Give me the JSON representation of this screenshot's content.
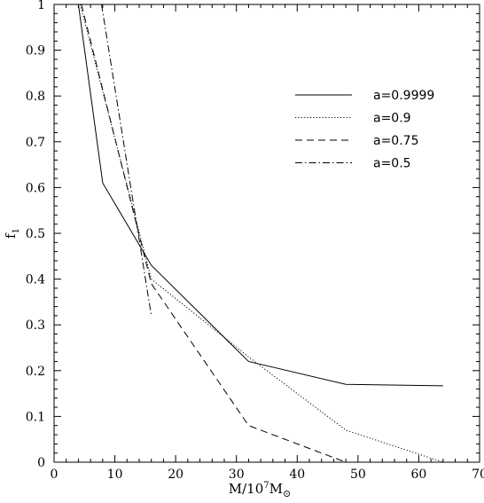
{
  "chart_data": {
    "type": "line",
    "title": "",
    "xlabel": "M/10",
    "xlabel_superscript": "7",
    "xlabel_unit": "M",
    "xlabel_unit_subscript": "⊙",
    "ylabel": "f",
    "ylabel_subscript": "1",
    "xlim": [
      0,
      70
    ],
    "ylim": [
      0,
      1
    ],
    "xticks": [
      0,
      10,
      20,
      30,
      40,
      50,
      60,
      70
    ],
    "yticks": [
      0,
      0.1,
      0.2,
      0.3,
      0.4,
      0.5,
      0.6,
      0.7,
      0.8,
      0.9,
      1
    ],
    "xtick_labels": [
      "0",
      "10",
      "20",
      "30",
      "40",
      "50",
      "60",
      "70"
    ],
    "ytick_labels": [
      "0",
      "0.1",
      "0.2",
      "0.3",
      "0.4",
      "0.5",
      "0.6",
      "0.7",
      "0.8",
      "0.9",
      "1"
    ],
    "grid": false,
    "legend_position": "top-right",
    "series": [
      {
        "name": "a=0.9999",
        "style": "solid",
        "x": [
          4,
          8,
          16,
          32,
          48,
          64
        ],
        "y": [
          1.0,
          0.61,
          0.43,
          0.22,
          0.17,
          0.167
        ]
      },
      {
        "name": "a=0.9",
        "style": "dotted",
        "x": [
          4.3,
          16,
          32,
          48,
          64
        ],
        "y": [
          1.0,
          0.4,
          0.23,
          0.07,
          0.0
        ]
      },
      {
        "name": "a=0.75",
        "style": "dashed",
        "x": [
          4.5,
          16,
          32,
          48
        ],
        "y": [
          1.0,
          0.39,
          0.08,
          0.0
        ]
      },
      {
        "name": "a=0.5",
        "style": "dashdot",
        "x": [
          7.8,
          16
        ],
        "y": [
          1.0,
          0.32
        ]
      }
    ]
  }
}
